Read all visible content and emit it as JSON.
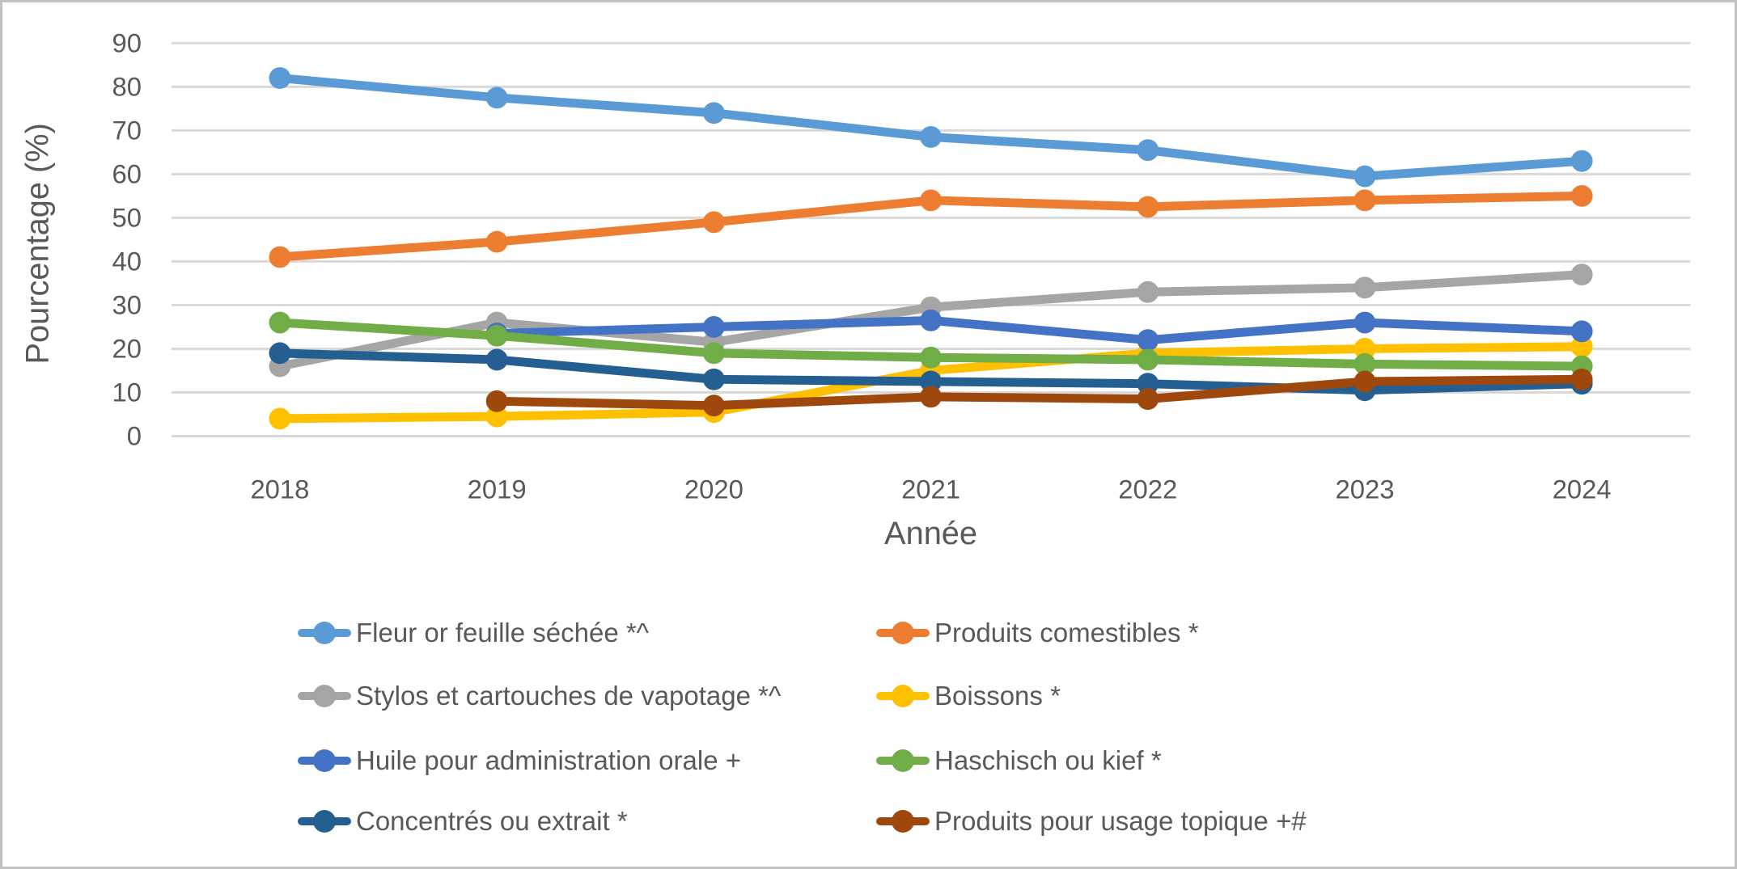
{
  "chart_data": {
    "type": "line",
    "title": "",
    "xlabel": "Année",
    "ylabel": "Pourcentage (%)",
    "ylim": [
      0,
      90
    ],
    "yticks": [
      0,
      10,
      20,
      30,
      40,
      50,
      60,
      70,
      80,
      90
    ],
    "grid": "horizontal",
    "legend_position": "bottom",
    "legend_columns": 2,
    "categories": [
      "2018",
      "2019",
      "2020",
      "2021",
      "2022",
      "2023",
      "2024"
    ],
    "series": [
      {
        "key": "fleur-sechee",
        "name": "Fleur or feuille séchée *^",
        "color": "#5B9BD5",
        "values": [
          82,
          77.5,
          74,
          68.5,
          65.5,
          59.5,
          63
        ]
      },
      {
        "key": "comestibles",
        "name": "Produits comestibles *",
        "color": "#ED7D31",
        "values": [
          41,
          44.5,
          49,
          54,
          52.5,
          54,
          55
        ]
      },
      {
        "key": "vapotage",
        "name": "Stylos et cartouches de vapotage *^",
        "color": "#A5A5A5",
        "values": [
          16,
          26,
          21.5,
          29.5,
          33,
          34,
          37
        ]
      },
      {
        "key": "boissons",
        "name": "Boissons *",
        "color": "#FFC000",
        "values": [
          4,
          4.5,
          5.5,
          15,
          19,
          20,
          20.5
        ]
      },
      {
        "key": "huile-orale",
        "name": "Huile pour administration orale +",
        "color": "#4472C4",
        "values": [
          null,
          23.5,
          25,
          26.5,
          22,
          26,
          24
        ]
      },
      {
        "key": "haschisch",
        "name": "Haschisch ou kief *",
        "color": "#70AD47",
        "values": [
          26,
          23,
          19,
          18,
          17.5,
          16.5,
          16
        ]
      },
      {
        "key": "concentres",
        "name": "Concentrés ou extrait *",
        "color": "#255E91",
        "values": [
          19,
          17.5,
          13,
          12.5,
          12,
          10.5,
          12
        ]
      },
      {
        "key": "topique",
        "name": "Produits pour usage topique +#",
        "color": "#9E480E",
        "values": [
          null,
          8,
          7,
          9,
          8.5,
          12.5,
          13
        ]
      }
    ]
  },
  "colors": {
    "text": "#595959",
    "gridline": "#D9D9D9",
    "frame_border": "#C1C1C1",
    "background": "#FFFFFF"
  }
}
